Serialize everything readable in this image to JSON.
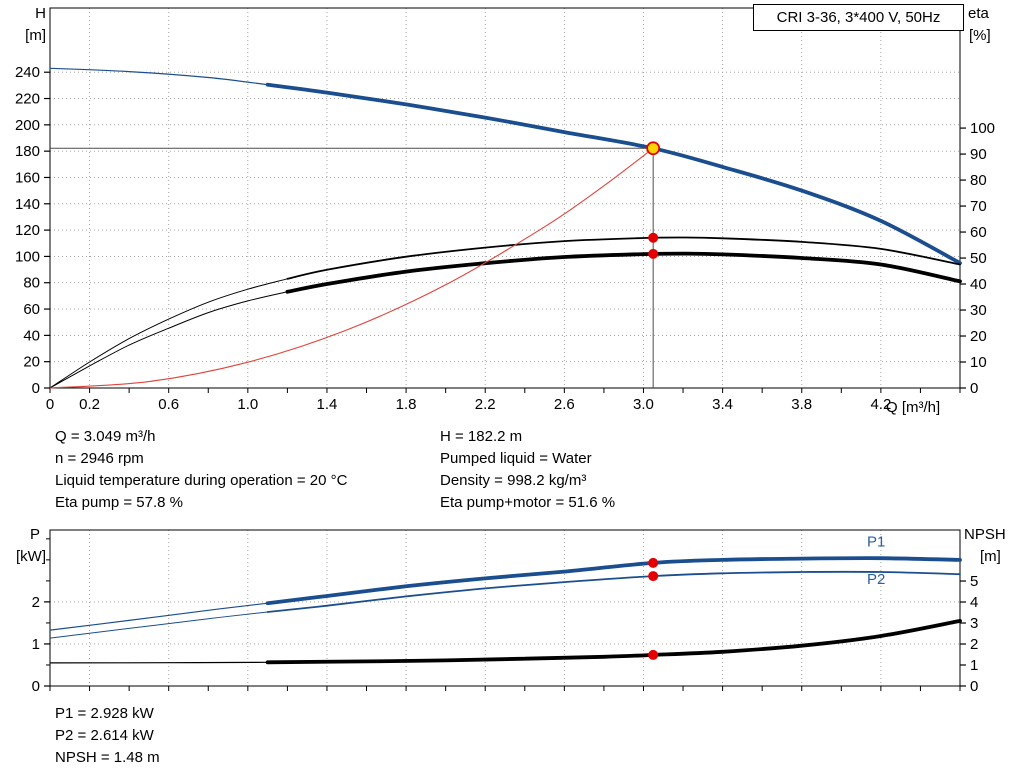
{
  "title_box": {
    "label": "CRI 3-36, 3*400 V, 50Hz"
  },
  "info": {
    "left": [
      "Q = 3.049 m³/h",
      "n = 2946 rpm",
      "Liquid temperature during operation = 20 °C",
      "Eta pump = 57.8 %"
    ],
    "right": [
      "H = 182.2 m",
      "Pumped liquid = Water",
      "Density = 998.2 kg/m³",
      "Eta pump+motor = 51.6 %"
    ]
  },
  "results": [
    "P1 = 2.928 kW",
    "P2 = 2.614 kW",
    "NPSH = 1.48 m"
  ],
  "colors": {
    "curve_blue": "#1b4e8f",
    "curve_black": "#000000",
    "curve_red": "#e0443c",
    "marker_red": "#e40000",
    "duty_fill": "#ffd400",
    "grid": "#9a9a9a",
    "axis": "#000000",
    "crosshair": "#4d4d4d",
    "legend_blue": "#2b5fa5"
  },
  "chart_data": [
    {
      "type": "line",
      "name": "hq-eta-chart",
      "title": "CRI 3-36, 3*400 V, 50Hz",
      "axes": {
        "x": {
          "label": "Q [m³/h]",
          "lim": [
            0,
            4.6
          ],
          "minor_step": 0.2,
          "tick_labels": [
            {
              "v": 0,
              "t": "0"
            },
            {
              "v": 0.2,
              "t": "0.2"
            },
            {
              "v": 0.6,
              "t": "0.6"
            },
            {
              "v": 1.0,
              "t": "1.0"
            },
            {
              "v": 1.4,
              "t": "1.4"
            },
            {
              "v": 1.8,
              "t": "1.8"
            },
            {
              "v": 2.2,
              "t": "2.2"
            },
            {
              "v": 2.6,
              "t": "2.6"
            },
            {
              "v": 3.0,
              "t": "3.0"
            },
            {
              "v": 3.4,
              "t": "3.4"
            },
            {
              "v": 3.8,
              "t": "3.8"
            },
            {
              "v": 4.2,
              "t": "4.2"
            }
          ],
          "grid_ticks": [
            0.2,
            0.6,
            1.0,
            1.4,
            1.8,
            2.2,
            2.6,
            3.0,
            3.4,
            3.8,
            4.2
          ]
        },
        "left": {
          "label": "H",
          "unit": "[m]",
          "lim": [
            0,
            288.8
          ],
          "ticks": [
            0,
            20,
            40,
            60,
            80,
            100,
            120,
            140,
            160,
            180,
            200,
            220,
            240
          ],
          "grid_ticks": [
            20,
            40,
            60,
            80,
            100,
            120,
            140,
            160,
            180,
            200,
            220,
            240
          ]
        },
        "right": {
          "label": "eta",
          "unit": "[%]",
          "lim": [
            0,
            146.2
          ],
          "ticks": [
            0,
            10,
            20,
            30,
            40,
            50,
            60,
            70,
            80,
            90,
            100
          ]
        }
      },
      "series": [
        {
          "name": "head-curve",
          "axis": "left",
          "color": "#1b4e8f",
          "thin": 1.2,
          "thick": 3.8,
          "thick_from": 1.1,
          "points": [
            [
              0,
              243
            ],
            [
              0.4,
              240.5
            ],
            [
              0.8,
              236
            ],
            [
              1.1,
              230.5
            ],
            [
              1.4,
              224.5
            ],
            [
              1.8,
              215.5
            ],
            [
              2.2,
              205.5
            ],
            [
              2.6,
              194.5
            ],
            [
              3.049,
              182.2
            ],
            [
              3.4,
              168
            ],
            [
              3.8,
              150
            ],
            [
              4.2,
              127
            ],
            [
              4.6,
              95
            ]
          ]
        },
        {
          "name": "eta-pump-curve",
          "axis": "right",
          "color": "#000000",
          "thin": 1,
          "thick": 1.8,
          "thick_from": 1.2,
          "points": [
            [
              0,
              0
            ],
            [
              0.2,
              10
            ],
            [
              0.4,
              19
            ],
            [
              0.6,
              26.5
            ],
            [
              0.8,
              33
            ],
            [
              1.0,
              38
            ],
            [
              1.2,
              42
            ],
            [
              1.4,
              45.5
            ],
            [
              1.8,
              50.5
            ],
            [
              2.2,
              54
            ],
            [
              2.6,
              56.5
            ],
            [
              3.0,
              57.7
            ],
            [
              3.2,
              57.9
            ],
            [
              3.4,
              57.6
            ],
            [
              3.8,
              56.2
            ],
            [
              4.2,
              53.5
            ],
            [
              4.6,
              47.5
            ]
          ]
        },
        {
          "name": "eta-pump-motor-curve",
          "axis": "right",
          "color": "#000000",
          "thin": 1,
          "thick": 3.8,
          "thick_from": 1.2,
          "points": [
            [
              0,
              0
            ],
            [
              0.2,
              8.5
            ],
            [
              0.4,
              16.5
            ],
            [
              0.6,
              23
            ],
            [
              0.8,
              29
            ],
            [
              1.0,
              33.5
            ],
            [
              1.2,
              37
            ],
            [
              1.4,
              40
            ],
            [
              1.8,
              44.8
            ],
            [
              2.2,
              48
            ],
            [
              2.6,
              50.4
            ],
            [
              3.0,
              51.5
            ],
            [
              3.2,
              51.7
            ],
            [
              3.4,
              51.4
            ],
            [
              3.8,
              50
            ],
            [
              4.2,
              47.5
            ],
            [
              4.6,
              41
            ]
          ]
        },
        {
          "name": "system-curve",
          "axis": "left",
          "color": "#e0443c",
          "thin": 1.1,
          "thick": 1.1,
          "thick_from": null,
          "points": [
            [
              0,
              0
            ],
            [
              0.5,
              4.9
            ],
            [
              1.0,
              19.6
            ],
            [
              1.5,
              44.1
            ],
            [
              2.0,
              78.4
            ],
            [
              2.5,
              122.5
            ],
            [
              2.8,
              153.7
            ],
            [
              3.049,
              182.2
            ]
          ]
        }
      ],
      "duty_point": {
        "q": 3.049,
        "v": 182.2,
        "axis": "left"
      },
      "markers": [
        {
          "q": 3.049,
          "v": 57.8,
          "axis": "right"
        },
        {
          "q": 3.049,
          "v": 51.6,
          "axis": "right"
        }
      ]
    },
    {
      "type": "line",
      "name": "power-npsh-chart",
      "axes": {
        "x": {
          "lim": [
            0,
            4.6
          ],
          "minor_step": 0.2,
          "tick_labels": [],
          "grid_ticks": [
            0.2,
            0.6,
            1.0,
            1.4,
            1.8,
            2.2,
            2.6,
            3.0,
            3.4,
            3.8,
            4.2
          ]
        },
        "left": {
          "label": "P",
          "unit": "[kW]",
          "lim": [
            0,
            3.71
          ],
          "ticks": [
            0,
            1,
            2
          ],
          "minor_step": 0.5,
          "grid_ticks": [
            1,
            2
          ]
        },
        "right": {
          "label": "NPSH",
          "unit": "[m]",
          "lim": [
            0,
            7.43
          ],
          "ticks": [
            0,
            1,
            2,
            3,
            4,
            5
          ]
        }
      },
      "series": [
        {
          "name": "p1-curve",
          "axis": "left",
          "color": "#1b4e8f",
          "thin": 1.2,
          "thick": 3.8,
          "thick_from": 1.1,
          "points": [
            [
              0,
              1.33
            ],
            [
              0.4,
              1.56
            ],
            [
              0.8,
              1.8
            ],
            [
              1.1,
              1.97
            ],
            [
              1.4,
              2.14
            ],
            [
              1.8,
              2.37
            ],
            [
              2.2,
              2.56
            ],
            [
              2.6,
              2.72
            ],
            [
              3.049,
              2.928
            ],
            [
              3.4,
              3.0
            ],
            [
              3.8,
              3.03
            ],
            [
              4.2,
              3.04
            ],
            [
              4.6,
              3.0
            ]
          ]
        },
        {
          "name": "p2-curve",
          "axis": "left",
          "color": "#1b4e8f",
          "thin": 1,
          "thick": 1.8,
          "thick_from": 1.1,
          "points": [
            [
              0,
              1.14
            ],
            [
              0.4,
              1.37
            ],
            [
              0.8,
              1.6
            ],
            [
              1.1,
              1.76
            ],
            [
              1.4,
              1.91
            ],
            [
              1.8,
              2.13
            ],
            [
              2.2,
              2.32
            ],
            [
              2.6,
              2.47
            ],
            [
              3.049,
              2.614
            ],
            [
              3.4,
              2.68
            ],
            [
              3.8,
              2.71
            ],
            [
              4.2,
              2.71
            ],
            [
              4.6,
              2.66
            ]
          ]
        },
        {
          "name": "npsh-curve",
          "axis": "right",
          "color": "#000000",
          "thin": 1.2,
          "thick": 3.8,
          "thick_from": 1.1,
          "points": [
            [
              0,
              1.1
            ],
            [
              0.6,
              1.11
            ],
            [
              1.1,
              1.13
            ],
            [
              1.6,
              1.17
            ],
            [
              2.0,
              1.22
            ],
            [
              2.4,
              1.3
            ],
            [
              2.8,
              1.39
            ],
            [
              3.049,
              1.48
            ],
            [
              3.4,
              1.63
            ],
            [
              3.8,
              1.92
            ],
            [
              4.2,
              2.38
            ],
            [
              4.6,
              3.1
            ]
          ]
        }
      ],
      "markers": [
        {
          "q": 3.049,
          "v": 2.928,
          "axis": "left"
        },
        {
          "q": 3.049,
          "v": 2.614,
          "axis": "left"
        },
        {
          "q": 3.049,
          "v": 1.48,
          "axis": "right"
        }
      ],
      "legend": [
        {
          "t": "P1",
          "q": 4.13,
          "v": 3.32,
          "axis": "left",
          "color": "#2b5fa5"
        },
        {
          "t": "P2",
          "q": 4.13,
          "v": 2.42,
          "axis": "left",
          "color": "#2b5fa5"
        }
      ]
    }
  ]
}
